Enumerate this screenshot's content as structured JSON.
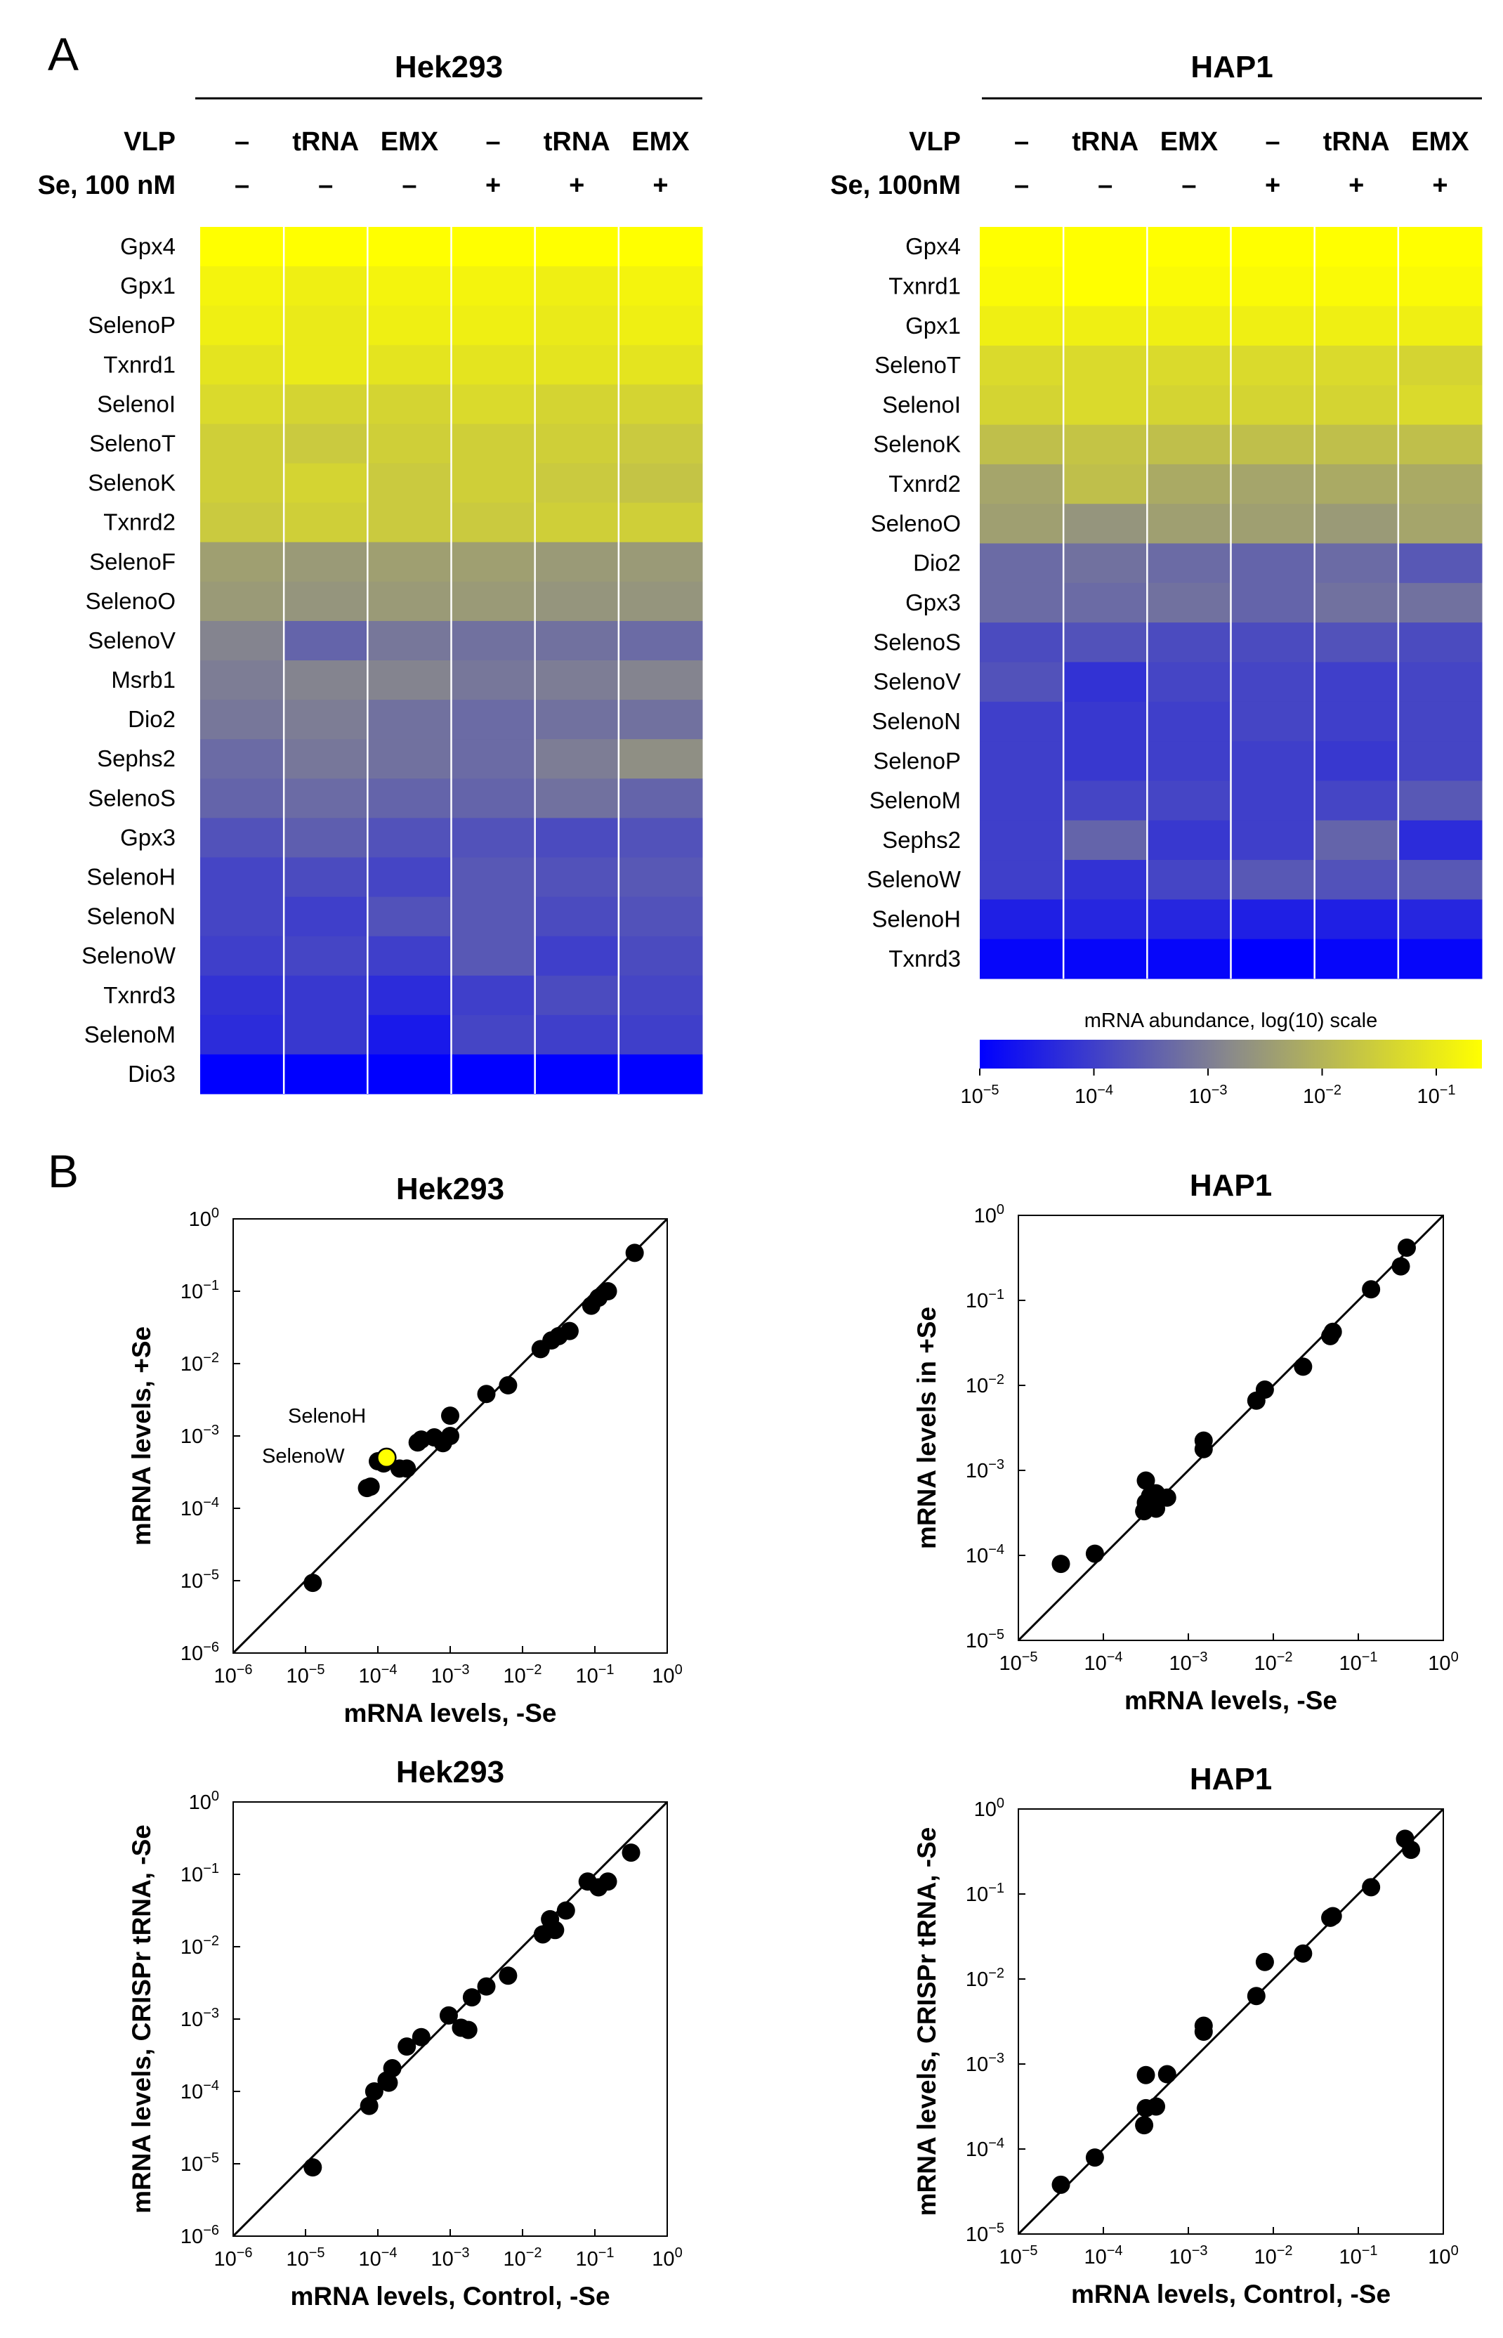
{
  "panel_a_letter": "A",
  "panel_b_letter": "B",
  "superscript_minus": "−",
  "chart_data": [
    {
      "type": "heatmap",
      "id": "hm_hek",
      "title": "Hek293",
      "row_vlp_label": "VLP",
      "row_se_label": "Se, 100 nM",
      "columns_vlp": [
        "–",
        "tRNA",
        "EMX",
        "–",
        "tRNA",
        "EMX"
      ],
      "columns_se": [
        "–",
        "–",
        "–",
        "+",
        "+",
        "+"
      ],
      "color_scale": "log10",
      "genes": [
        "Gpx4",
        "Gpx1",
        "SelenoP",
        "Txnrd1",
        "SelenoI",
        "SelenoT",
        "SelenoK",
        "Txnrd2",
        "SelenoF",
        "SelenoO",
        "SelenoV",
        "Msrb1",
        "Dio2",
        "Sephs2",
        "SelenoS",
        "Gpx3",
        "SelenoH",
        "SelenoN",
        "SelenoW",
        "Txnrd3",
        "SelenoM",
        "Dio3"
      ],
      "values_log10": [
        [
          -0.3,
          -0.4,
          -0.3,
          -0.3,
          -0.3,
          -0.3
        ],
        [
          -0.8,
          -0.9,
          -0.8,
          -0.8,
          -0.9,
          -0.8
        ],
        [
          -0.9,
          -1.0,
          -0.9,
          -0.9,
          -1.0,
          -0.9
        ],
        [
          -1.1,
          -1.0,
          -1.1,
          -1.1,
          -1.1,
          -1.1
        ],
        [
          -1.3,
          -1.4,
          -1.4,
          -1.3,
          -1.4,
          -1.4
        ],
        [
          -1.5,
          -1.6,
          -1.5,
          -1.5,
          -1.5,
          -1.6
        ],
        [
          -1.5,
          -1.4,
          -1.6,
          -1.5,
          -1.6,
          -1.7
        ],
        [
          -1.6,
          -1.5,
          -1.6,
          -1.6,
          -1.5,
          -1.5
        ],
        [
          -2.4,
          -2.5,
          -2.4,
          -2.4,
          -2.5,
          -2.5
        ],
        [
          -2.5,
          -2.6,
          -2.5,
          -2.5,
          -2.6,
          -2.6
        ],
        [
          -2.9,
          -3.4,
          -3.1,
          -3.2,
          -3.2,
          -3.3
        ],
        [
          -3.0,
          -2.9,
          -2.9,
          -3.1,
          -3.0,
          -2.9
        ],
        [
          -3.1,
          -3.0,
          -3.2,
          -3.3,
          -3.2,
          -3.2
        ],
        [
          -3.3,
          -3.1,
          -3.2,
          -3.3,
          -3.0,
          -2.7
        ],
        [
          -3.4,
          -3.3,
          -3.4,
          -3.4,
          -3.2,
          -3.4
        ],
        [
          -3.7,
          -3.5,
          -3.7,
          -3.7,
          -3.8,
          -3.7
        ],
        [
          -3.9,
          -3.8,
          -3.9,
          -3.6,
          -3.7,
          -3.6
        ],
        [
          -3.9,
          -4.0,
          -3.7,
          -3.6,
          -3.8,
          -3.7
        ],
        [
          -4.0,
          -3.9,
          -4.0,
          -3.6,
          -4.0,
          -3.8
        ],
        [
          -4.2,
          -4.1,
          -4.3,
          -4.0,
          -3.8,
          -3.9
        ],
        [
          -4.3,
          -4.1,
          -4.6,
          -3.9,
          -4.0,
          -4.0
        ],
        [
          -5.0,
          -5.0,
          -5.0,
          -5.0,
          -5.0,
          -5.0
        ]
      ]
    },
    {
      "type": "heatmap",
      "id": "hm_hap",
      "title": "HAP1",
      "row_vlp_label": "VLP",
      "row_se_label": "Se, 100nM",
      "columns_vlp": [
        "–",
        "tRNA",
        "EMX",
        "–",
        "tRNA",
        "EMX"
      ],
      "columns_se": [
        "–",
        "–",
        "–",
        "+",
        "+",
        "+"
      ],
      "color_scale": "log10",
      "genes": [
        "Gpx4",
        "Txnrd1",
        "Gpx1",
        "SelenoT",
        "SelenoI",
        "SelenoK",
        "Txnrd2",
        "SelenoO",
        "Dio2",
        "Gpx3",
        "SelenoS",
        "SelenoV",
        "SelenoN",
        "SelenoP",
        "SelenoM",
        "Sephs2",
        "SelenoW",
        "SelenoH",
        "Txnrd3"
      ],
      "values_log10": [
        [
          -0.4,
          -0.5,
          -0.4,
          -0.4,
          -0.4,
          -0.4
        ],
        [
          -0.7,
          -0.5,
          -0.7,
          -0.7,
          -0.7,
          -0.7
        ],
        [
          -0.9,
          -0.9,
          -0.9,
          -0.9,
          -0.9,
          -0.9
        ],
        [
          -1.3,
          -1.3,
          -1.3,
          -1.3,
          -1.3,
          -1.4
        ],
        [
          -1.4,
          -1.3,
          -1.4,
          -1.4,
          -1.4,
          -1.3
        ],
        [
          -1.8,
          -1.7,
          -1.8,
          -1.8,
          -1.8,
          -1.8
        ],
        [
          -2.3,
          -1.8,
          -2.2,
          -2.3,
          -2.2,
          -2.2
        ],
        [
          -2.4,
          -2.6,
          -2.4,
          -2.4,
          -2.5,
          -2.3
        ],
        [
          -3.3,
          -3.2,
          -3.3,
          -3.4,
          -3.3,
          -3.6
        ],
        [
          -3.3,
          -3.3,
          -3.2,
          -3.4,
          -3.2,
          -3.2
        ],
        [
          -3.8,
          -3.7,
          -3.8,
          -3.8,
          -3.7,
          -3.8
        ],
        [
          -3.7,
          -4.2,
          -3.9,
          -3.9,
          -4.0,
          -3.9
        ],
        [
          -4.0,
          -4.1,
          -4.0,
          -3.9,
          -4.0,
          -3.9
        ],
        [
          -4.0,
          -4.1,
          -4.0,
          -4.0,
          -4.1,
          -3.9
        ],
        [
          -4.0,
          -3.9,
          -3.9,
          -4.0,
          -3.9,
          -3.6
        ],
        [
          -4.0,
          -3.4,
          -4.1,
          -4.0,
          -3.4,
          -4.3
        ],
        [
          -4.0,
          -4.2,
          -3.9,
          -3.6,
          -3.7,
          -3.6
        ],
        [
          -4.5,
          -4.4,
          -4.4,
          -4.5,
          -4.5,
          -4.4
        ],
        [
          -4.9,
          -4.9,
          -4.9,
          -5.0,
          -4.9,
          -4.9
        ]
      ]
    },
    {
      "type": "colorbar",
      "id": "cbar",
      "title": "mRNA abundance, log(10) scale",
      "range_log10": [
        -5,
        -0.6
      ],
      "stops": [
        "#0000ff",
        "#8a8a8a",
        "#ffff00"
      ],
      "ticks": [
        -5,
        -4,
        -3,
        -2,
        -1
      ]
    },
    {
      "type": "scatter",
      "id": "sc1",
      "title": "Hek293",
      "xlabel": "mRNA levels, -Se",
      "ylabel": "mRNA levels, +Se",
      "xlim_log10": [
        -6,
        0
      ],
      "ylim_log10": [
        -6,
        0
      ],
      "diagonal": true,
      "annotations": [
        "SelenoH",
        "SelenoW"
      ],
      "points": [
        [
          -4.9,
          -5.03
        ],
        [
          -4.15,
          -3.72
        ],
        [
          -4.1,
          -3.7
        ],
        [
          -4.0,
          -3.35
        ],
        [
          -3.92,
          -3.38
        ],
        [
          -3.7,
          -3.45
        ],
        [
          -3.6,
          -3.45
        ],
        [
          -3.45,
          -3.09
        ],
        [
          -3.4,
          -3.05
        ],
        [
          -3.22,
          -3.02
        ],
        [
          -3.1,
          -3.1
        ],
        [
          -3.0,
          -3.0
        ],
        [
          -3.0,
          -2.72
        ],
        [
          -2.5,
          -2.42
        ],
        [
          -2.2,
          -2.3
        ],
        [
          -1.75,
          -1.8
        ],
        [
          -1.6,
          -1.68
        ],
        [
          -1.5,
          -1.62
        ],
        [
          -1.35,
          -1.55
        ],
        [
          -1.05,
          -1.2
        ],
        [
          -0.95,
          -1.09
        ],
        [
          -0.82,
          -1.0
        ],
        [
          -0.45,
          -0.47
        ]
      ],
      "highlight_points": [
        [
          -3.88,
          -3.3
        ]
      ]
    },
    {
      "type": "scatter",
      "id": "sc2",
      "title": "HAP1",
      "xlabel": "mRNA levels, -Se",
      "ylabel": "mRNA levels in +Se",
      "xlim_log10": [
        -5,
        0
      ],
      "ylim_log10": [
        -5,
        0
      ],
      "diagonal": true,
      "points": [
        [
          -4.5,
          -4.1
        ],
        [
          -4.1,
          -3.98
        ],
        [
          -3.52,
          -3.48
        ],
        [
          -3.5,
          -3.38
        ],
        [
          -3.5,
          -3.12
        ],
        [
          -3.45,
          -3.3
        ],
        [
          -3.38,
          -3.27
        ],
        [
          -3.38,
          -3.45
        ],
        [
          -3.25,
          -3.32
        ],
        [
          -2.82,
          -2.75
        ],
        [
          -2.82,
          -2.65
        ],
        [
          -2.2,
          -2.18
        ],
        [
          -2.1,
          -2.05
        ],
        [
          -1.65,
          -1.78
        ],
        [
          -1.33,
          -1.42
        ],
        [
          -1.3,
          -1.37
        ],
        [
          -0.85,
          -0.87
        ],
        [
          -0.5,
          -0.6
        ],
        [
          -0.43,
          -0.38
        ]
      ]
    },
    {
      "type": "scatter",
      "id": "sc3",
      "title": "Hek293",
      "xlabel": "mRNA levels, Control, -Se",
      "ylabel": "mRNA levels, CRISPr tRNA, -Se",
      "xlim_log10": [
        -6,
        0
      ],
      "ylim_log10": [
        -6,
        0
      ],
      "diagonal": true,
      "points": [
        [
          -4.9,
          -5.05
        ],
        [
          -4.12,
          -4.2
        ],
        [
          -4.05,
          -4.0
        ],
        [
          -3.88,
          -3.85
        ],
        [
          -3.85,
          -3.88
        ],
        [
          -3.8,
          -3.68
        ],
        [
          -3.6,
          -3.38
        ],
        [
          -3.4,
          -3.25
        ],
        [
          -3.02,
          -2.95
        ],
        [
          -2.85,
          -3.12
        ],
        [
          -2.75,
          -3.15
        ],
        [
          -2.7,
          -2.7
        ],
        [
          -2.5,
          -2.55
        ],
        [
          -2.2,
          -2.4
        ],
        [
          -1.72,
          -1.83
        ],
        [
          -1.62,
          -1.62
        ],
        [
          -1.55,
          -1.77
        ],
        [
          -1.4,
          -1.5
        ],
        [
          -1.1,
          -1.1
        ],
        [
          -0.95,
          -1.18
        ],
        [
          -0.82,
          -1.1
        ],
        [
          -0.5,
          -0.7
        ]
      ]
    },
    {
      "type": "scatter",
      "id": "sc4",
      "title": "HAP1",
      "xlabel": "mRNA levels, Control, -Se",
      "ylabel": "mRNA levels, CRISPr tRNA, -Se",
      "xlim_log10": [
        -5,
        0
      ],
      "ylim_log10": [
        -5,
        0
      ],
      "diagonal": true,
      "points": [
        [
          -4.5,
          -4.42
        ],
        [
          -4.1,
          -4.1
        ],
        [
          -3.52,
          -3.72
        ],
        [
          -3.5,
          -3.52
        ],
        [
          -3.5,
          -3.13
        ],
        [
          -3.38,
          -3.5
        ],
        [
          -3.25,
          -3.12
        ],
        [
          -2.82,
          -2.62
        ],
        [
          -2.82,
          -2.55
        ],
        [
          -2.2,
          -2.2
        ],
        [
          -2.1,
          -1.8
        ],
        [
          -1.65,
          -1.7
        ],
        [
          -1.33,
          -1.28
        ],
        [
          -1.3,
          -1.26
        ],
        [
          -0.85,
          -0.92
        ],
        [
          -0.45,
          -0.35
        ],
        [
          -0.38,
          -0.48
        ]
      ]
    }
  ]
}
